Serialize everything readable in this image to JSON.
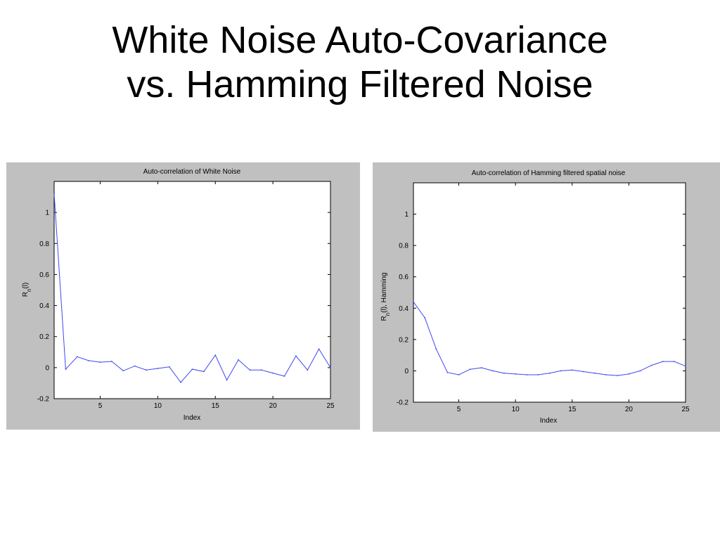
{
  "slide": {
    "title_line1": "White Noise Auto-Covariance",
    "title_line2": "vs. Hamming Filtered Noise"
  },
  "chart_data": [
    {
      "type": "line",
      "title": "Auto-correlation of White Noise",
      "xlabel": "Index",
      "ylabel": "R_n(l)",
      "ylabel_main": "R",
      "ylabel_sub": "n",
      "ylabel_rest": "(l)",
      "xlim": [
        1,
        25
      ],
      "ylim": [
        -0.2,
        1.2
      ],
      "xticks": [
        5,
        10,
        15,
        20,
        25
      ],
      "yticks": [
        -0.2,
        0,
        0.2,
        0.4,
        0.6,
        0.8,
        1
      ],
      "ytick_labels": [
        "-0.2",
        "0",
        "0.2",
        "0.4",
        "0.6",
        "0.8",
        "1"
      ],
      "grid": false,
      "line_color": "#3f48ee",
      "x": [
        1,
        2,
        3,
        4,
        5,
        6,
        7,
        8,
        9,
        10,
        11,
        12,
        13,
        14,
        15,
        16,
        17,
        18,
        19,
        20,
        21,
        22,
        23,
        24,
        25
      ],
      "y": [
        1.12,
        -0.01,
        0.07,
        0.045,
        0.035,
        0.04,
        -0.02,
        0.01,
        -0.015,
        -0.005,
        0.005,
        -0.095,
        -0.01,
        -0.025,
        0.08,
        -0.08,
        0.05,
        -0.015,
        -0.015,
        -0.035,
        -0.055,
        0.075,
        -0.015,
        0.12,
        0.0
      ]
    },
    {
      "type": "line",
      "title": "Auto-correlation of Hamming filtered spatial noise",
      "xlabel": "Index",
      "ylabel": "R_n(l), Hamming",
      "ylabel_main": "R",
      "ylabel_sub": "n",
      "ylabel_rest": "(l), Hamming",
      "xlim": [
        1,
        25
      ],
      "ylim": [
        -0.2,
        1.2
      ],
      "xticks": [
        5,
        10,
        15,
        20,
        25
      ],
      "yticks": [
        -0.2,
        0,
        0.2,
        0.4,
        0.6,
        0.8,
        1
      ],
      "ytick_labels": [
        "-0.2",
        "0",
        "0.2",
        "0.4",
        "0.6",
        "0.8",
        "1"
      ],
      "grid": false,
      "line_color": "#3f48ee",
      "x": [
        1,
        2,
        3,
        4,
        5,
        6,
        7,
        8,
        9,
        10,
        11,
        12,
        13,
        14,
        15,
        16,
        17,
        18,
        19,
        20,
        21,
        22,
        23,
        24,
        25
      ],
      "y": [
        0.44,
        0.34,
        0.14,
        -0.01,
        -0.025,
        0.01,
        0.02,
        0.0,
        -0.015,
        -0.02,
        -0.025,
        -0.025,
        -0.015,
        0.0,
        0.005,
        -0.005,
        -0.015,
        -0.025,
        -0.03,
        -0.02,
        0.0,
        0.035,
        0.06,
        0.06,
        0.03
      ]
    }
  ]
}
